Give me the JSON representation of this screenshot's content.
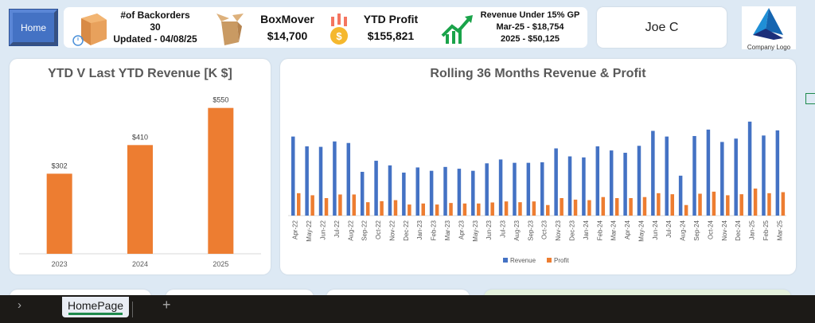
{
  "home_button": "Home",
  "kpis": {
    "backorders_label": "#of Backorders",
    "backorders_value": "30",
    "backorders_updated": "Updated - 04/08/25",
    "boxmover_label": "BoxMover",
    "boxmover_value": "$14,700",
    "ytd_profit_label": "YTD Profit",
    "ytd_profit_value": "$155,821",
    "rev_under_label": "Revenue Under 15% GP",
    "rev_under_month": "Mar-25 - $18,754",
    "rev_under_year": "2025 - $50,125"
  },
  "user": "Joe C",
  "logo_text": "Company Logo",
  "colors": {
    "revenue": "#4472c4",
    "profit": "#ed7d31",
    "bar": "#ed7d31"
  },
  "sheet_tab": "HomePage",
  "chart_data": [
    {
      "type": "bar",
      "title": "YTD V Last YTD Revenue [K $]",
      "categories": [
        "2023",
        "2024",
        "2025"
      ],
      "values": [
        302,
        410,
        550
      ],
      "data_labels": [
        "$302",
        "$410",
        "$550"
      ],
      "ylim": [
        0,
        600
      ],
      "grid": false
    },
    {
      "type": "bar",
      "title": "Rolling 36 Months Revenue & Profit",
      "categories": [
        "Apr-22",
        "May-22",
        "Jun-22",
        "Jul-22",
        "Aug-22",
        "Sep-22",
        "Oct-22",
        "Nov-22",
        "Dec-22",
        "Jan-23",
        "Feb-23",
        "Mar-23",
        "Apr-23",
        "May-23",
        "Jun-23",
        "Jul-23",
        "Aug-23",
        "Sep-23",
        "Oct-23",
        "Nov-23",
        "Dec-23",
        "Jan-24",
        "Feb-24",
        "Mar-24",
        "Apr-24",
        "May-24",
        "Jun-24",
        "Jul-24",
        "Aug-24",
        "Sep-24",
        "Oct-24",
        "Nov-24",
        "Dec-24",
        "Jan-25",
        "Feb-25",
        "Mar-25"
      ],
      "series": [
        {
          "name": "Revenue",
          "values": [
            307,
            269,
            267,
            288,
            282,
            170,
            213,
            195,
            167,
            187,
            174,
            189,
            182,
            174,
            203,
            218,
            205,
            205,
            207,
            261,
            230,
            226,
            269,
            253,
            244,
            271,
            329,
            307,
            155,
            309,
            334,
            286,
            299,
            365,
            311,
            331
          ]
        },
        {
          "name": "Profit",
          "values": [
            87,
            79,
            68,
            82,
            82,
            52,
            56,
            60,
            43,
            47,
            43,
            49,
            47,
            47,
            51,
            55,
            52,
            55,
            41,
            68,
            62,
            60,
            72,
            68,
            68,
            72,
            87,
            83,
            41,
            85,
            93,
            79,
            83,
            105,
            87,
            91
          ]
        }
      ],
      "ylim": [
        0,
        380
      ],
      "legend": "bottom",
      "grid": false
    }
  ]
}
